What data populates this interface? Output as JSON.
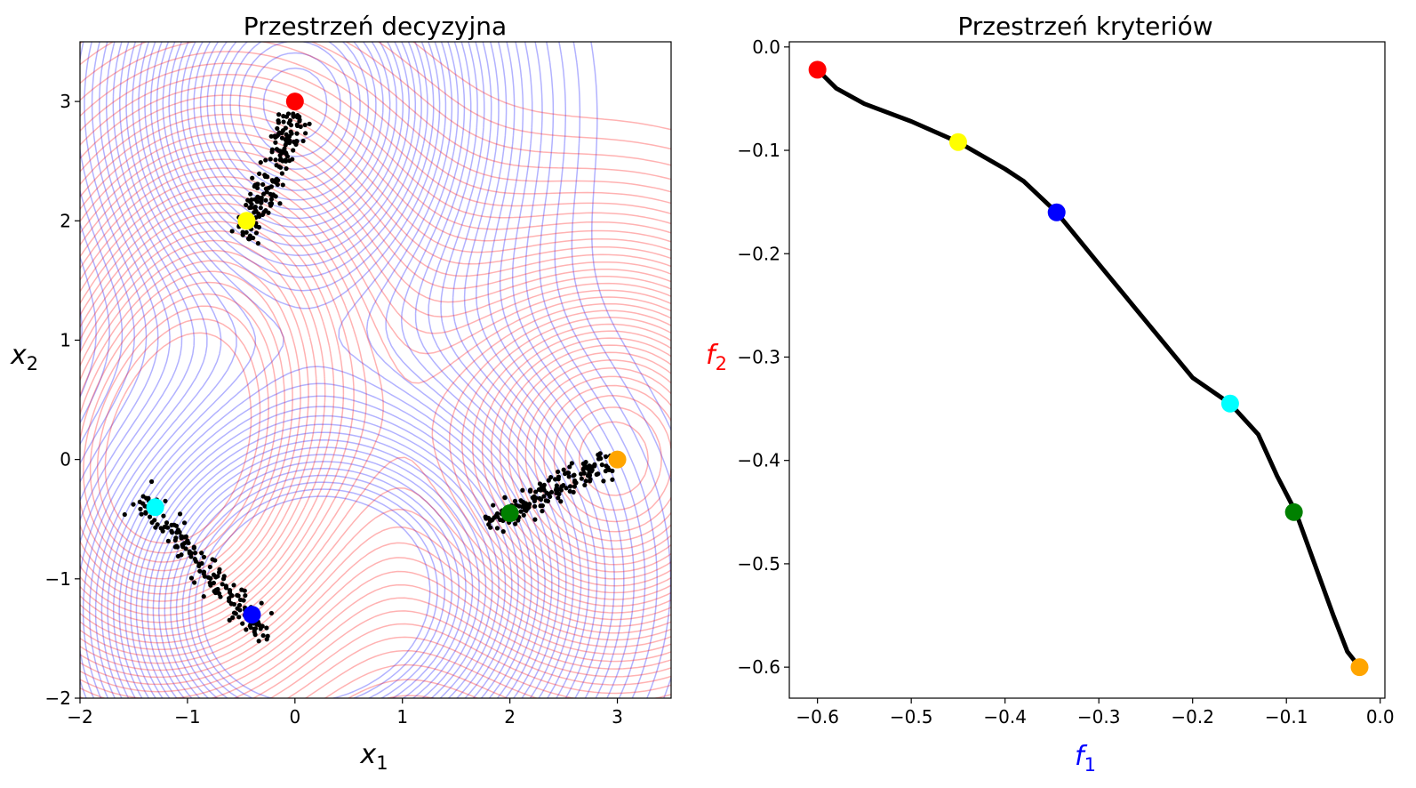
{
  "chart_data": [
    {
      "type": "scatter",
      "title": "Przestrzeń decyzyjna",
      "xlabel": "x",
      "xlabel_sub": "1",
      "ylabel": "x",
      "ylabel_sub": "2",
      "xlim": [
        -2,
        3.5
      ],
      "ylim": [
        -2,
        3.5
      ],
      "xticks": [
        -2,
        -1,
        0,
        1,
        2,
        3
      ],
      "yticks": [
        -2,
        -1,
        0,
        1,
        2,
        3
      ],
      "xtick_labels": [
        "−2",
        "−1",
        "0",
        "1",
        "2",
        "3"
      ],
      "ytick_labels": [
        "−2",
        "−1",
        "0",
        "1",
        "2",
        "3"
      ],
      "grid": false,
      "contours": [
        {
          "name": "f1",
          "color": "#0000ff",
          "opacity": 0.3
        },
        {
          "name": "f2",
          "color": "#ff0000",
          "opacity": 0.3
        }
      ],
      "cloud_color": "#000000",
      "clusters": [
        {
          "from": [
            -0.45,
            1.85
          ],
          "to": [
            0.0,
            2.9
          ],
          "spread": 0.07
        },
        {
          "from": [
            -1.45,
            -0.3
          ],
          "to": [
            -0.25,
            -1.5
          ],
          "spread": 0.06
        },
        {
          "from": [
            1.8,
            -0.55
          ],
          "to": [
            2.95,
            0.0
          ],
          "spread": 0.06
        }
      ],
      "markers": [
        {
          "color": "#ff0000",
          "x": 0.0,
          "y": 3.0
        },
        {
          "color": "#ffff00",
          "x": -0.45,
          "y": 2.0
        },
        {
          "color": "#00ffff",
          "x": -1.3,
          "y": -0.4
        },
        {
          "color": "#0000ff",
          "x": -0.4,
          "y": -1.3
        },
        {
          "color": "#008000",
          "x": 2.0,
          "y": -0.45
        },
        {
          "color": "#ffa500",
          "x": 3.0,
          "y": 0.0
        }
      ]
    },
    {
      "type": "line",
      "title": "Przestrzeń kryteriów",
      "xlabel": "f",
      "xlabel_sub": "1",
      "xlabel_color": "#0000ff",
      "ylabel": "f",
      "ylabel_sub": "2",
      "ylabel_color": "#ff0000",
      "xlim": [
        -0.63,
        0.005
      ],
      "ylim": [
        -0.63,
        0.005
      ],
      "xticks": [
        -0.6,
        -0.5,
        -0.4,
        -0.3,
        -0.2,
        -0.1,
        0.0
      ],
      "yticks": [
        0.0,
        -0.1,
        -0.2,
        -0.3,
        -0.4,
        -0.5,
        -0.6
      ],
      "xtick_labels": [
        "−0.6",
        "−0.5",
        "−0.4",
        "−0.3",
        "−0.2",
        "−0.1",
        "0.0"
      ],
      "ytick_labels": [
        "0.0",
        "−0.1",
        "−0.2",
        "−0.3",
        "−0.4",
        "−0.5",
        "−0.6"
      ],
      "grid": false,
      "front_color": "#000000",
      "front": {
        "x": [
          -0.6,
          -0.58,
          -0.55,
          -0.5,
          -0.45,
          -0.4,
          -0.38,
          -0.345,
          -0.3,
          -0.25,
          -0.2,
          -0.16,
          -0.13,
          -0.11,
          -0.09,
          -0.07,
          -0.05,
          -0.035,
          -0.022
        ],
        "y": [
          -0.022,
          -0.04,
          -0.055,
          -0.072,
          -0.092,
          -0.118,
          -0.13,
          -0.16,
          -0.21,
          -0.265,
          -0.32,
          -0.345,
          -0.375,
          -0.415,
          -0.45,
          -0.5,
          -0.55,
          -0.585,
          -0.6
        ]
      },
      "markers": [
        {
          "color": "#ff0000",
          "x": -0.6,
          "y": -0.022
        },
        {
          "color": "#ffff00",
          "x": -0.45,
          "y": -0.092
        },
        {
          "color": "#0000ff",
          "x": -0.345,
          "y": -0.16
        },
        {
          "color": "#00ffff",
          "x": -0.16,
          "y": -0.345
        },
        {
          "color": "#008000",
          "x": -0.092,
          "y": -0.45
        },
        {
          "color": "#ffa500",
          "x": -0.022,
          "y": -0.6
        }
      ]
    }
  ]
}
